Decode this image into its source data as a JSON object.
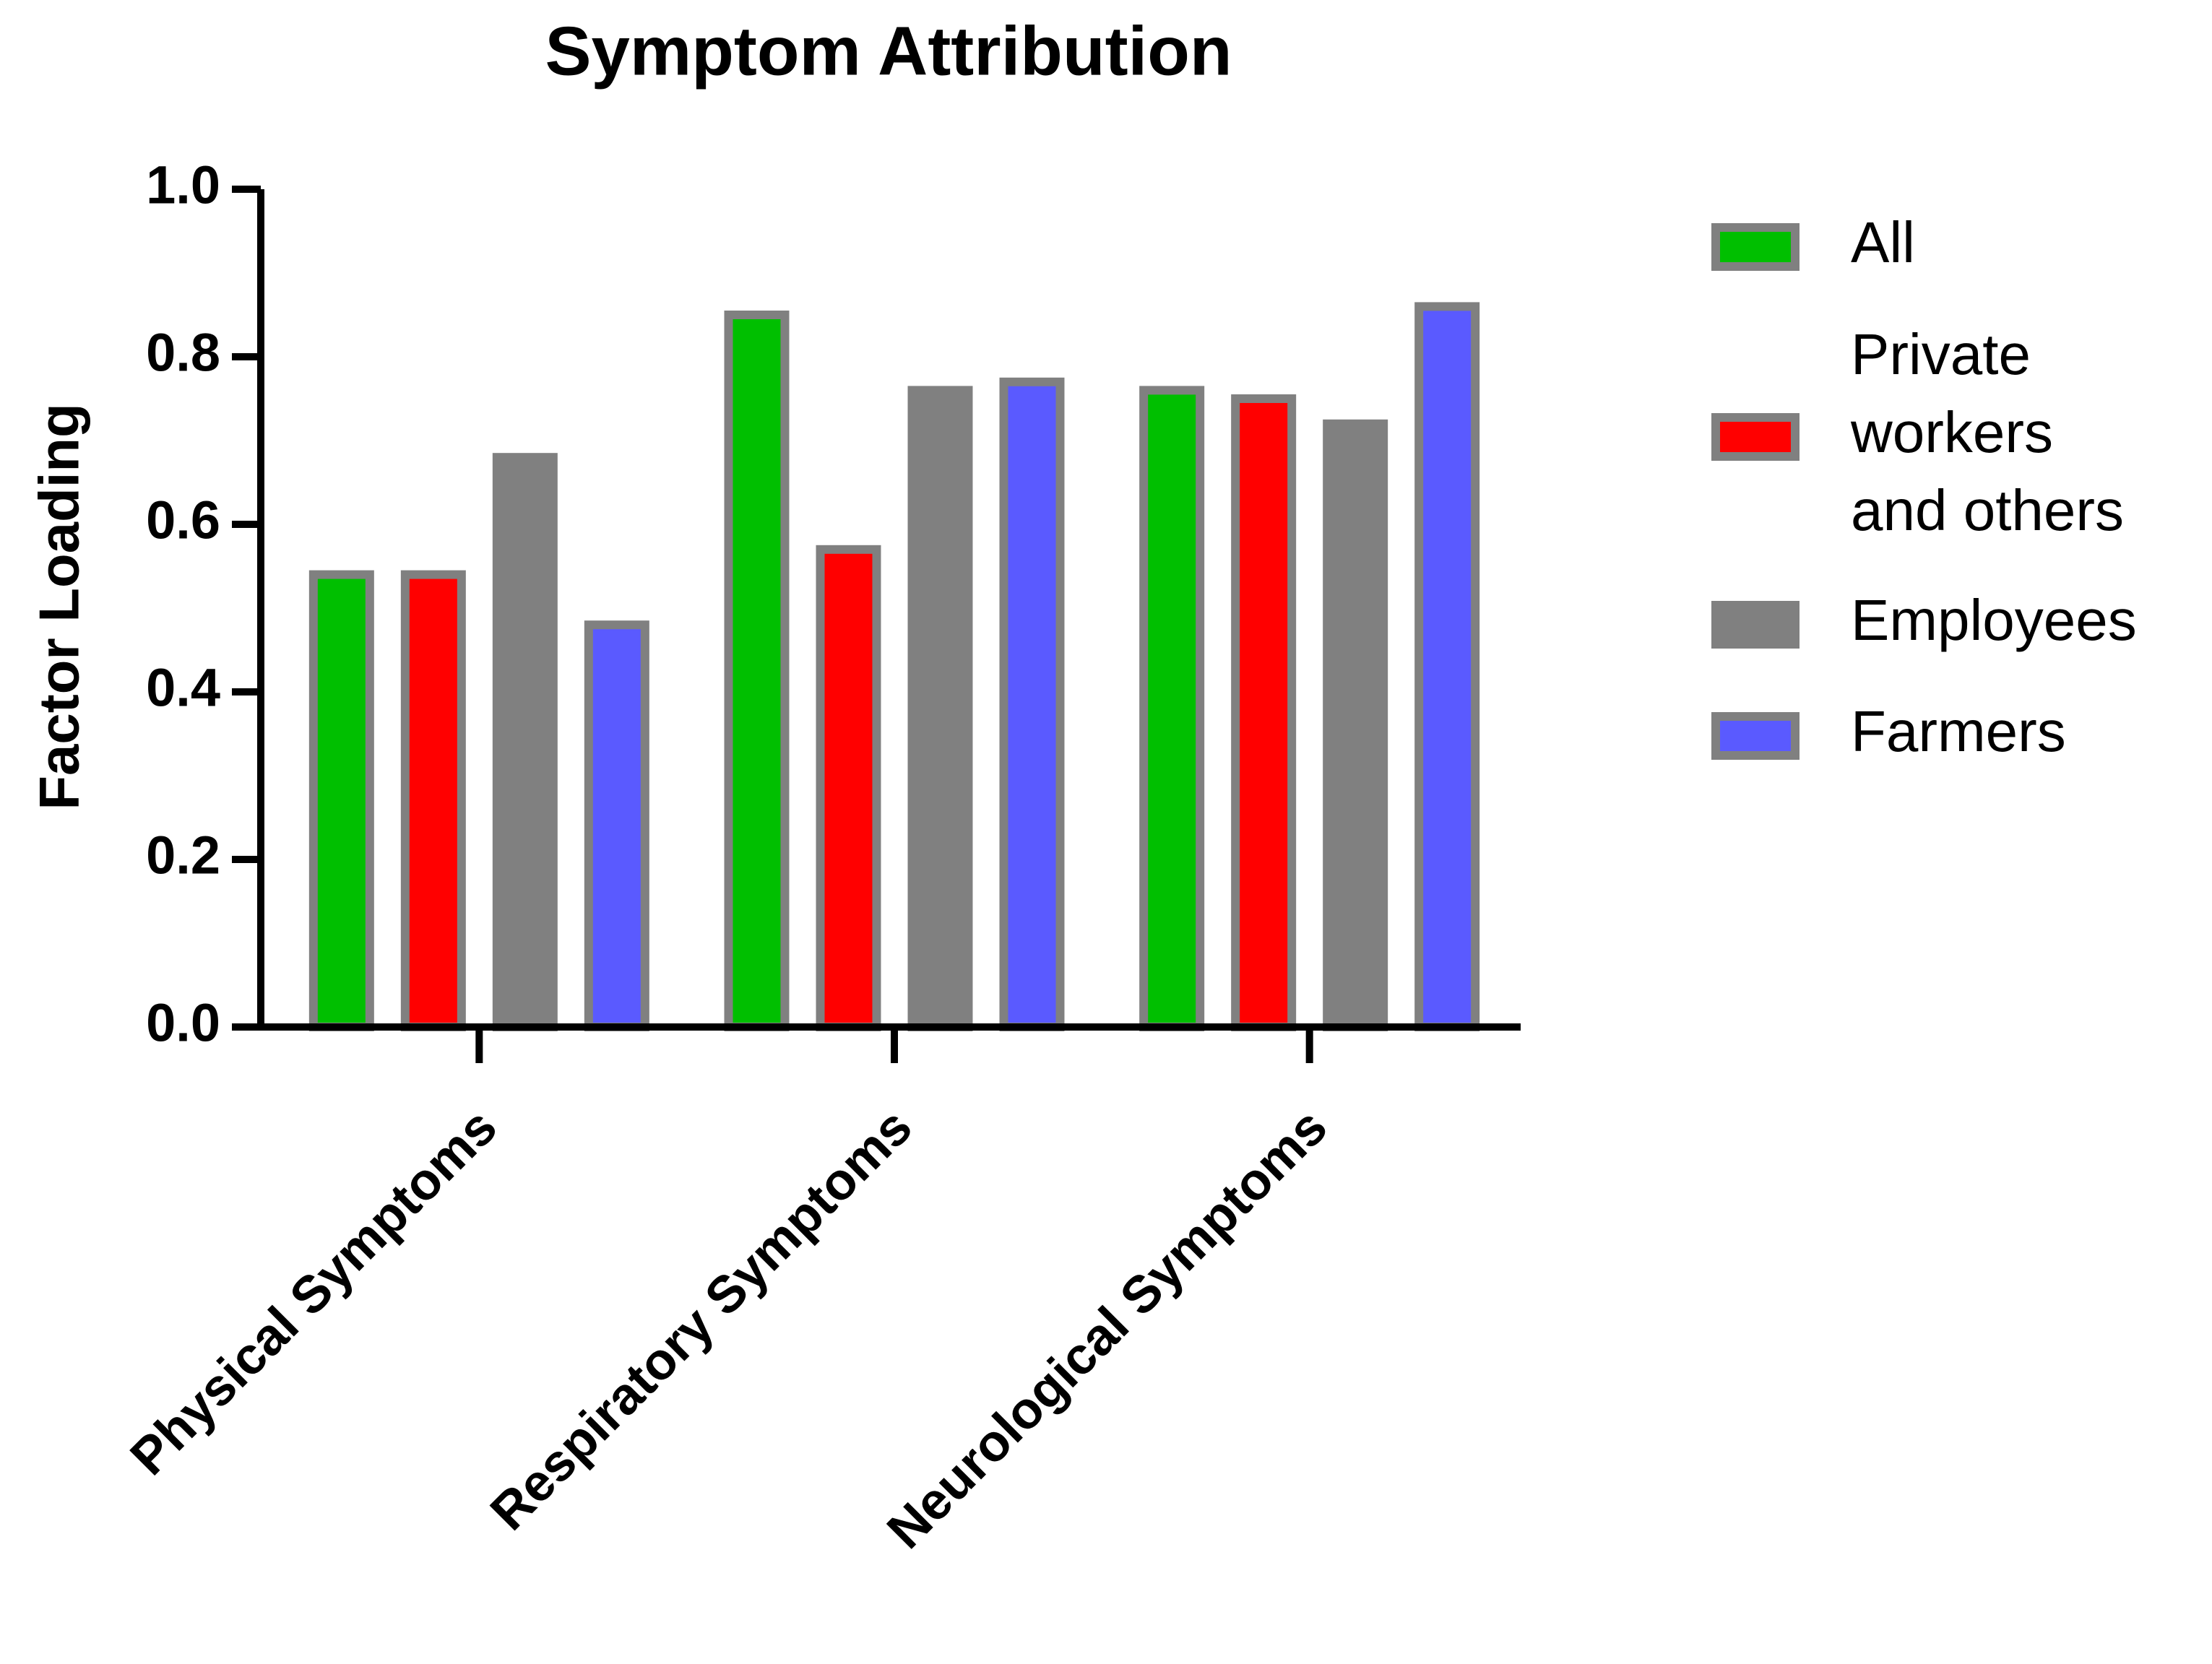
{
  "chart_data": {
    "type": "bar",
    "title": "Symptom Attribution",
    "y_label": "Factor Loading",
    "categories": [
      "Physical Symptoms",
      "Respiratory Symptoms",
      "Neurological Symptoms"
    ],
    "series": [
      {
        "name": "All",
        "color": "#00bf00",
        "values": [
          0.54,
          0.85,
          0.76
        ]
      },
      {
        "name": "Private workers and others",
        "color": "#ff0000",
        "values": [
          0.54,
          0.57,
          0.75
        ]
      },
      {
        "name": "Employees",
        "color": "#808080",
        "values": [
          0.68,
          0.76,
          0.72
        ]
      },
      {
        "name": "Farmers",
        "color": "#5a5aff",
        "values": [
          0.48,
          0.77,
          0.86
        ]
      }
    ],
    "ylim": [
      0,
      1.0
    ],
    "yticks": [
      {
        "value": 0,
        "label": "0.0"
      },
      0.2,
      0.4,
      0.6,
      0.8,
      {
        "value": 1,
        "label": "1.0"
      }
    ],
    "legend": "right",
    "grid": false
  }
}
